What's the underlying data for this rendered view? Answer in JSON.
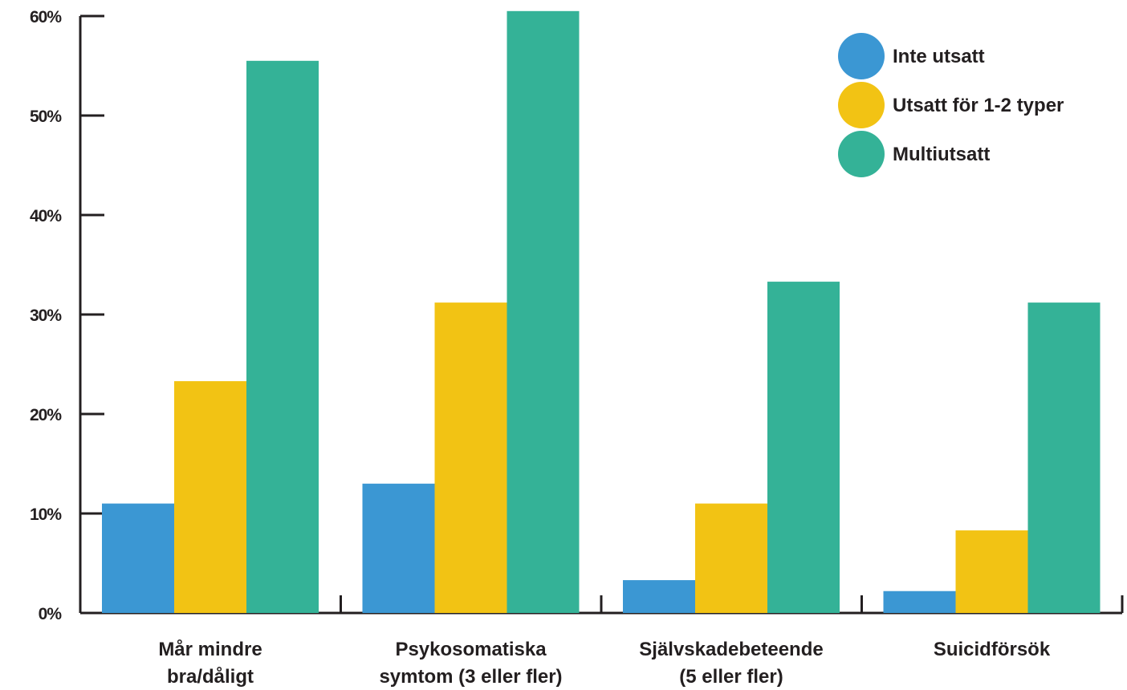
{
  "chart_data": {
    "type": "bar",
    "categories": [
      [
        "Mår mindre",
        "bra/dåligt"
      ],
      [
        "Psykosomatiska",
        "symtom (3 eller fler)"
      ],
      [
        "Självskadebeteende",
        "(5 eller fler)"
      ],
      [
        "Suicidförsök"
      ]
    ],
    "series": [
      {
        "name": "Inte utsatt",
        "color": "#3b97d3",
        "values": [
          11,
          13,
          3.3,
          2.2
        ]
      },
      {
        "name": "Utsatt för 1-2 typer",
        "color": "#f2c314",
        "values": [
          23.3,
          31.2,
          11,
          8.3
        ]
      },
      {
        "name": "Multiutsatt",
        "color": "#34b297",
        "values": [
          55.5,
          60.5,
          33.3,
          31.2
        ]
      }
    ],
    "ylim": [
      0,
      60
    ],
    "yticks": [
      "0%",
      "10%",
      "20%",
      "30%",
      "40%",
      "50%",
      "60%"
    ],
    "legend_position": "top-right",
    "grid": false
  }
}
